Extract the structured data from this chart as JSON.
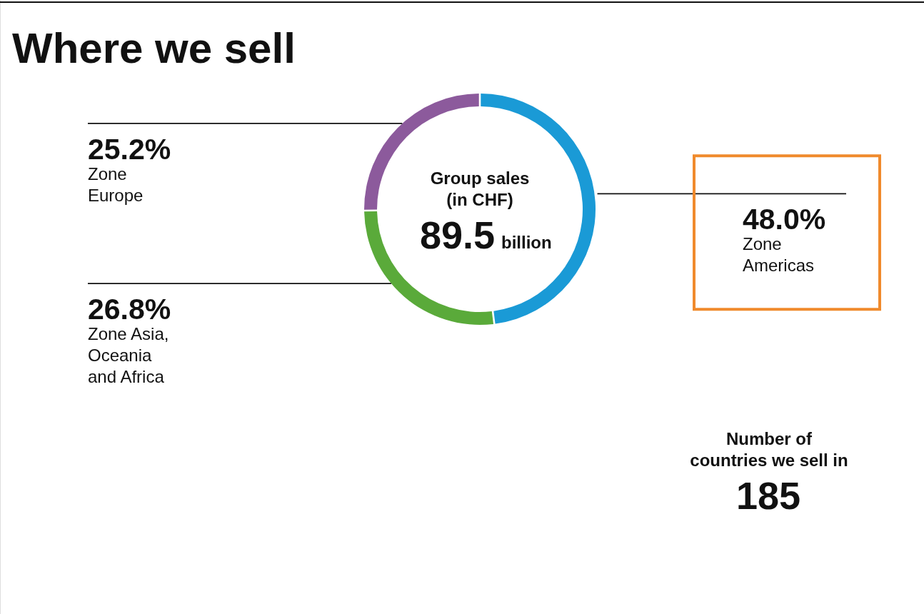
{
  "chart_data": {
    "type": "donut",
    "title": "Where we sell",
    "categories": [
      "Zone\nAmericas",
      "Zone Asia,\nOceania\nand Africa",
      "Zone\nEurope"
    ],
    "values": [
      48.0,
      26.8,
      25.2
    ],
    "colors": [
      "#1a9ad6",
      "#5aaa3a",
      "#8c5a9c"
    ],
    "value_labels": [
      "48.0%",
      "26.8%",
      "25.2%"
    ],
    "annotations": [
      "Group sales\n(in CHF)",
      "89.5",
      "billion",
      "Number of\ncountries we sell in",
      "185"
    ]
  }
}
